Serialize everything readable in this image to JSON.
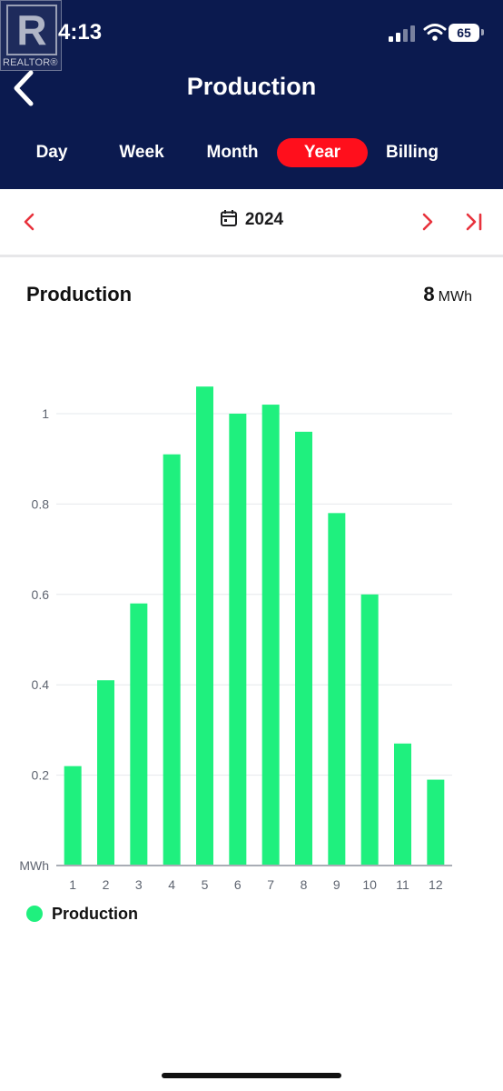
{
  "status_bar": {
    "time": "4:13",
    "battery": "65",
    "icons": [
      "signal-icon",
      "wifi-icon",
      "battery-icon"
    ]
  },
  "watermark": {
    "logo_letter": "R",
    "logo_text": "REALTOR®"
  },
  "header": {
    "title": "Production",
    "back_icon": "chevron-left-icon",
    "tabs": [
      {
        "label": "Day",
        "active": false
      },
      {
        "label": "Week",
        "active": false
      },
      {
        "label": "Month",
        "active": false
      },
      {
        "label": "Year",
        "active": true
      },
      {
        "label": "Billing",
        "active": false
      }
    ]
  },
  "date_nav": {
    "year": "2024",
    "prev_icon": "chevron-left-icon",
    "next_icon": "chevron-right-icon",
    "last_icon": "skip-to-end-icon",
    "calendar_icon": "calendar-icon"
  },
  "summary": {
    "label": "Production",
    "total": "8",
    "unit": "MWh"
  },
  "colors": {
    "header_bg": "#0b1a4f",
    "accent": "#ff0f1c",
    "bar": "#1ff07e"
  },
  "chart_data": {
    "type": "bar",
    "categories": [
      "1",
      "2",
      "3",
      "4",
      "5",
      "6",
      "7",
      "8",
      "9",
      "10",
      "11",
      "12"
    ],
    "series": [
      {
        "name": "Production",
        "values": [
          0.22,
          0.41,
          0.58,
          0.91,
          1.06,
          1.0,
          1.02,
          0.96,
          0.78,
          0.6,
          0.27,
          0.19
        ]
      }
    ],
    "ylabel": "MWh",
    "yticks": [
      "0.2",
      "0.4",
      "0.6",
      "0.8",
      "1"
    ],
    "ylim": [
      0,
      1.1
    ],
    "grid": true,
    "legend": "bottom-left"
  }
}
